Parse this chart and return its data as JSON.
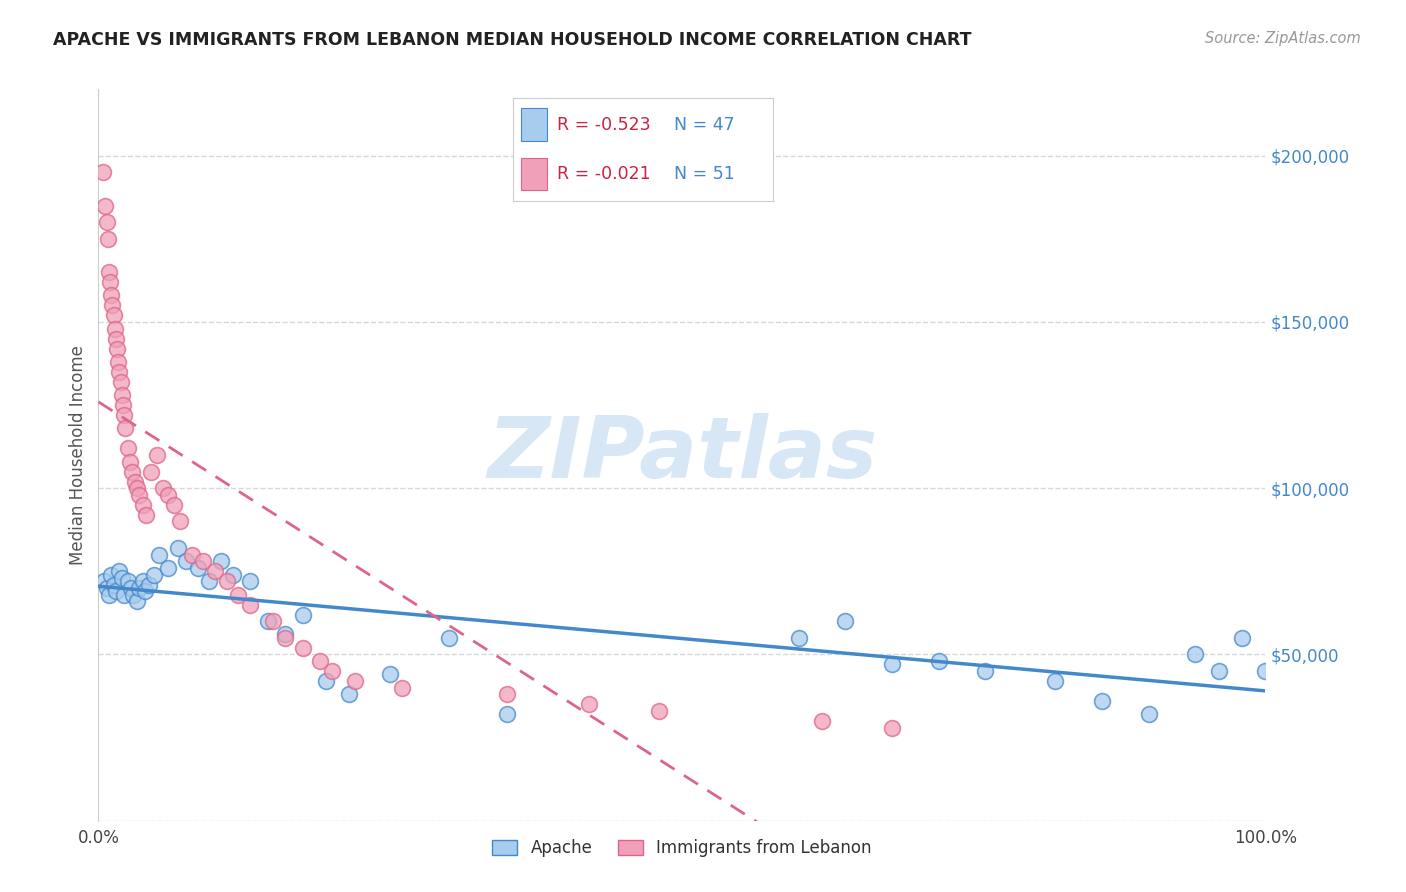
{
  "title": "APACHE VS IMMIGRANTS FROM LEBANON MEDIAN HOUSEHOLD INCOME CORRELATION CHART",
  "source": "Source: ZipAtlas.com",
  "ylabel": "Median Household Income",
  "watermark": "ZIPatlas",
  "xlim": [
    0,
    1.0
  ],
  "ylim": [
    0,
    220000
  ],
  "ytick_positions": [
    0,
    50000,
    100000,
    150000,
    200000
  ],
  "ytick_labels": [
    "",
    "$50,000",
    "$100,000",
    "$150,000",
    "$200,000"
  ],
  "grid_color": "#d8d8d8",
  "background_color": "#ffffff",
  "apache_color": "#a8ccee",
  "lebanon_color": "#f0a0b8",
  "apache_line_color": "#4488cc",
  "lebanon_line_color": "#dd6688",
  "legend_apache_R": "-0.523",
  "legend_apache_N": "47",
  "legend_lebanon_R": "-0.021",
  "legend_lebanon_N": "51",
  "legend_label_apache": "Apache",
  "legend_label_lebanon": "Immigrants from Lebanon",
  "apache_x": [
    0.005,
    0.007,
    0.009,
    0.011,
    0.013,
    0.015,
    0.018,
    0.02,
    0.022,
    0.025,
    0.028,
    0.03,
    0.033,
    0.035,
    0.038,
    0.04,
    0.043,
    0.048,
    0.052,
    0.06,
    0.068,
    0.075,
    0.085,
    0.095,
    0.105,
    0.115,
    0.13,
    0.145,
    0.16,
    0.175,
    0.195,
    0.215,
    0.25,
    0.3,
    0.35,
    0.6,
    0.64,
    0.68,
    0.72,
    0.76,
    0.82,
    0.86,
    0.9,
    0.94,
    0.96,
    0.98,
    1.0
  ],
  "apache_y": [
    72000,
    70000,
    68000,
    74000,
    71000,
    69000,
    75000,
    73000,
    68000,
    72000,
    70000,
    68000,
    66000,
    70000,
    72000,
    69000,
    71000,
    74000,
    80000,
    76000,
    82000,
    78000,
    76000,
    72000,
    78000,
    74000,
    72000,
    60000,
    56000,
    62000,
    42000,
    38000,
    44000,
    55000,
    32000,
    55000,
    60000,
    47000,
    48000,
    45000,
    42000,
    36000,
    32000,
    50000,
    45000,
    55000,
    45000
  ],
  "lebanon_x": [
    0.004,
    0.006,
    0.007,
    0.008,
    0.009,
    0.01,
    0.011,
    0.012,
    0.013,
    0.014,
    0.015,
    0.016,
    0.017,
    0.018,
    0.019,
    0.02,
    0.021,
    0.022,
    0.023,
    0.025,
    0.027,
    0.029,
    0.031,
    0.033,
    0.035,
    0.038,
    0.041,
    0.045,
    0.05,
    0.055,
    0.06,
    0.065,
    0.07,
    0.08,
    0.09,
    0.1,
    0.11,
    0.12,
    0.13,
    0.15,
    0.16,
    0.175,
    0.19,
    0.2,
    0.22,
    0.26,
    0.35,
    0.42,
    0.48,
    0.62,
    0.68
  ],
  "lebanon_y": [
    195000,
    185000,
    180000,
    175000,
    165000,
    162000,
    158000,
    155000,
    152000,
    148000,
    145000,
    142000,
    138000,
    135000,
    132000,
    128000,
    125000,
    122000,
    118000,
    112000,
    108000,
    105000,
    102000,
    100000,
    98000,
    95000,
    92000,
    105000,
    110000,
    100000,
    98000,
    95000,
    90000,
    80000,
    78000,
    75000,
    72000,
    68000,
    65000,
    60000,
    55000,
    52000,
    48000,
    45000,
    42000,
    40000,
    38000,
    35000,
    33000,
    30000,
    28000
  ]
}
